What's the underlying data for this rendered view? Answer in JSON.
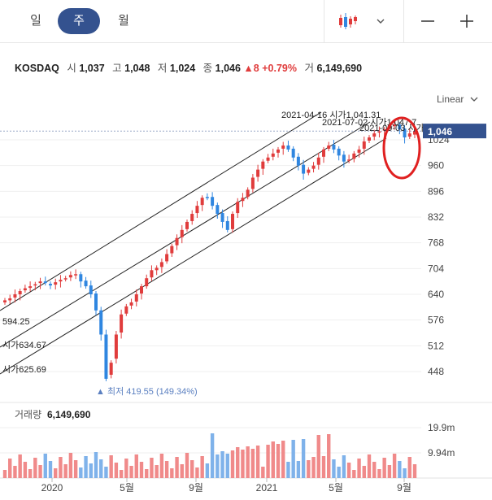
{
  "tabs": [
    {
      "label": "일"
    },
    {
      "label": "주"
    },
    {
      "label": "월"
    }
  ],
  "controls": {
    "chart_type_icon": "candlestick-icon",
    "dropdown_icon": "chevron-down-icon",
    "minus_icon": "minus-icon",
    "plus_icon": "plus-icon"
  },
  "quote": {
    "symbol": "KOSDAQ",
    "open_label": "시",
    "open": "1,037",
    "high_label": "고",
    "high": "1,048",
    "low_label": "저",
    "low": "1,024",
    "close_label": "종",
    "close": "1,046",
    "change": "8",
    "change_pct": "+0.79%",
    "volume_label": "거",
    "volume": "6,149,690"
  },
  "scale_mode": "Linear",
  "colors": {
    "up": "#e03c3c",
    "down": "#2f86e0",
    "accent": "#34528f",
    "annotation": "#e02020"
  },
  "chart_data": [
    {
      "type": "candlestick",
      "y_ticks": [
        1024,
        960,
        896,
        832,
        768,
        704,
        640,
        576,
        512,
        448
      ],
      "ylim": [
        400,
        1080
      ],
      "x_tick_labels": [
        "2020",
        "5월",
        "9월",
        "2021",
        "5월",
        "9월"
      ],
      "current_price": "1,046",
      "min_label": "최저 419.55 (149.34%)",
      "channel_labels": [
        {
          "text": "2021-04-16 시가1,041.31"
        },
        {
          "text": "2021-07-02 시가1,047.7"
        },
        {
          "text": "2021-09-03 시가"
        },
        {
          "text": "594.25"
        },
        {
          "text": "시가634.67"
        },
        {
          "text": "시가625.69"
        }
      ],
      "weekly_close": [
        625,
        630,
        640,
        648,
        655,
        660,
        665,
        672,
        668,
        662,
        670,
        676,
        680,
        688,
        690,
        672,
        660,
        640,
        600,
        540,
        430,
        470,
        540,
        590,
        610,
        620,
        640,
        660,
        680,
        700,
        706,
        720,
        740,
        760,
        780,
        800,
        820,
        840,
        860,
        880,
        880,
        860,
        840,
        820,
        800,
        840,
        870,
        880,
        900,
        930,
        950,
        970,
        980,
        990,
        1000,
        1010,
        1000,
        980,
        960,
        940,
        950,
        960,
        980,
        1000,
        1010,
        1000,
        985,
        970,
        975,
        990,
        1000,
        1020,
        1030,
        1040,
        1045,
        1050,
        1060,
        1062,
        1050,
        1030,
        1040,
        1046
      ],
      "weekly_open": [
        620,
        625,
        632,
        640,
        650,
        656,
        662,
        668,
        672,
        666,
        664,
        672,
        678,
        682,
        690,
        690,
        674,
        662,
        642,
        600,
        540,
        440,
        480,
        545,
        592,
        612,
        622,
        642,
        660,
        682,
        700,
        708,
        722,
        742,
        762,
        782,
        802,
        822,
        842,
        862,
        882,
        882,
        862,
        842,
        822,
        802,
        842,
        872,
        882,
        902,
        932,
        952,
        972,
        982,
        992,
        1002,
        1010,
        1002,
        982,
        962,
        942,
        952,
        962,
        982,
        1002,
        1012,
        1002,
        987,
        972,
        977,
        992,
        1002,
        1022,
        1032,
        1042,
        1047,
        1052,
        1058,
        1062,
        1052,
        1032,
        1037
      ],
      "volume_ticks": [
        "19.9m",
        "9.94m"
      ],
      "volume_label": "거래량",
      "volume_value": "6,149,690"
    }
  ]
}
